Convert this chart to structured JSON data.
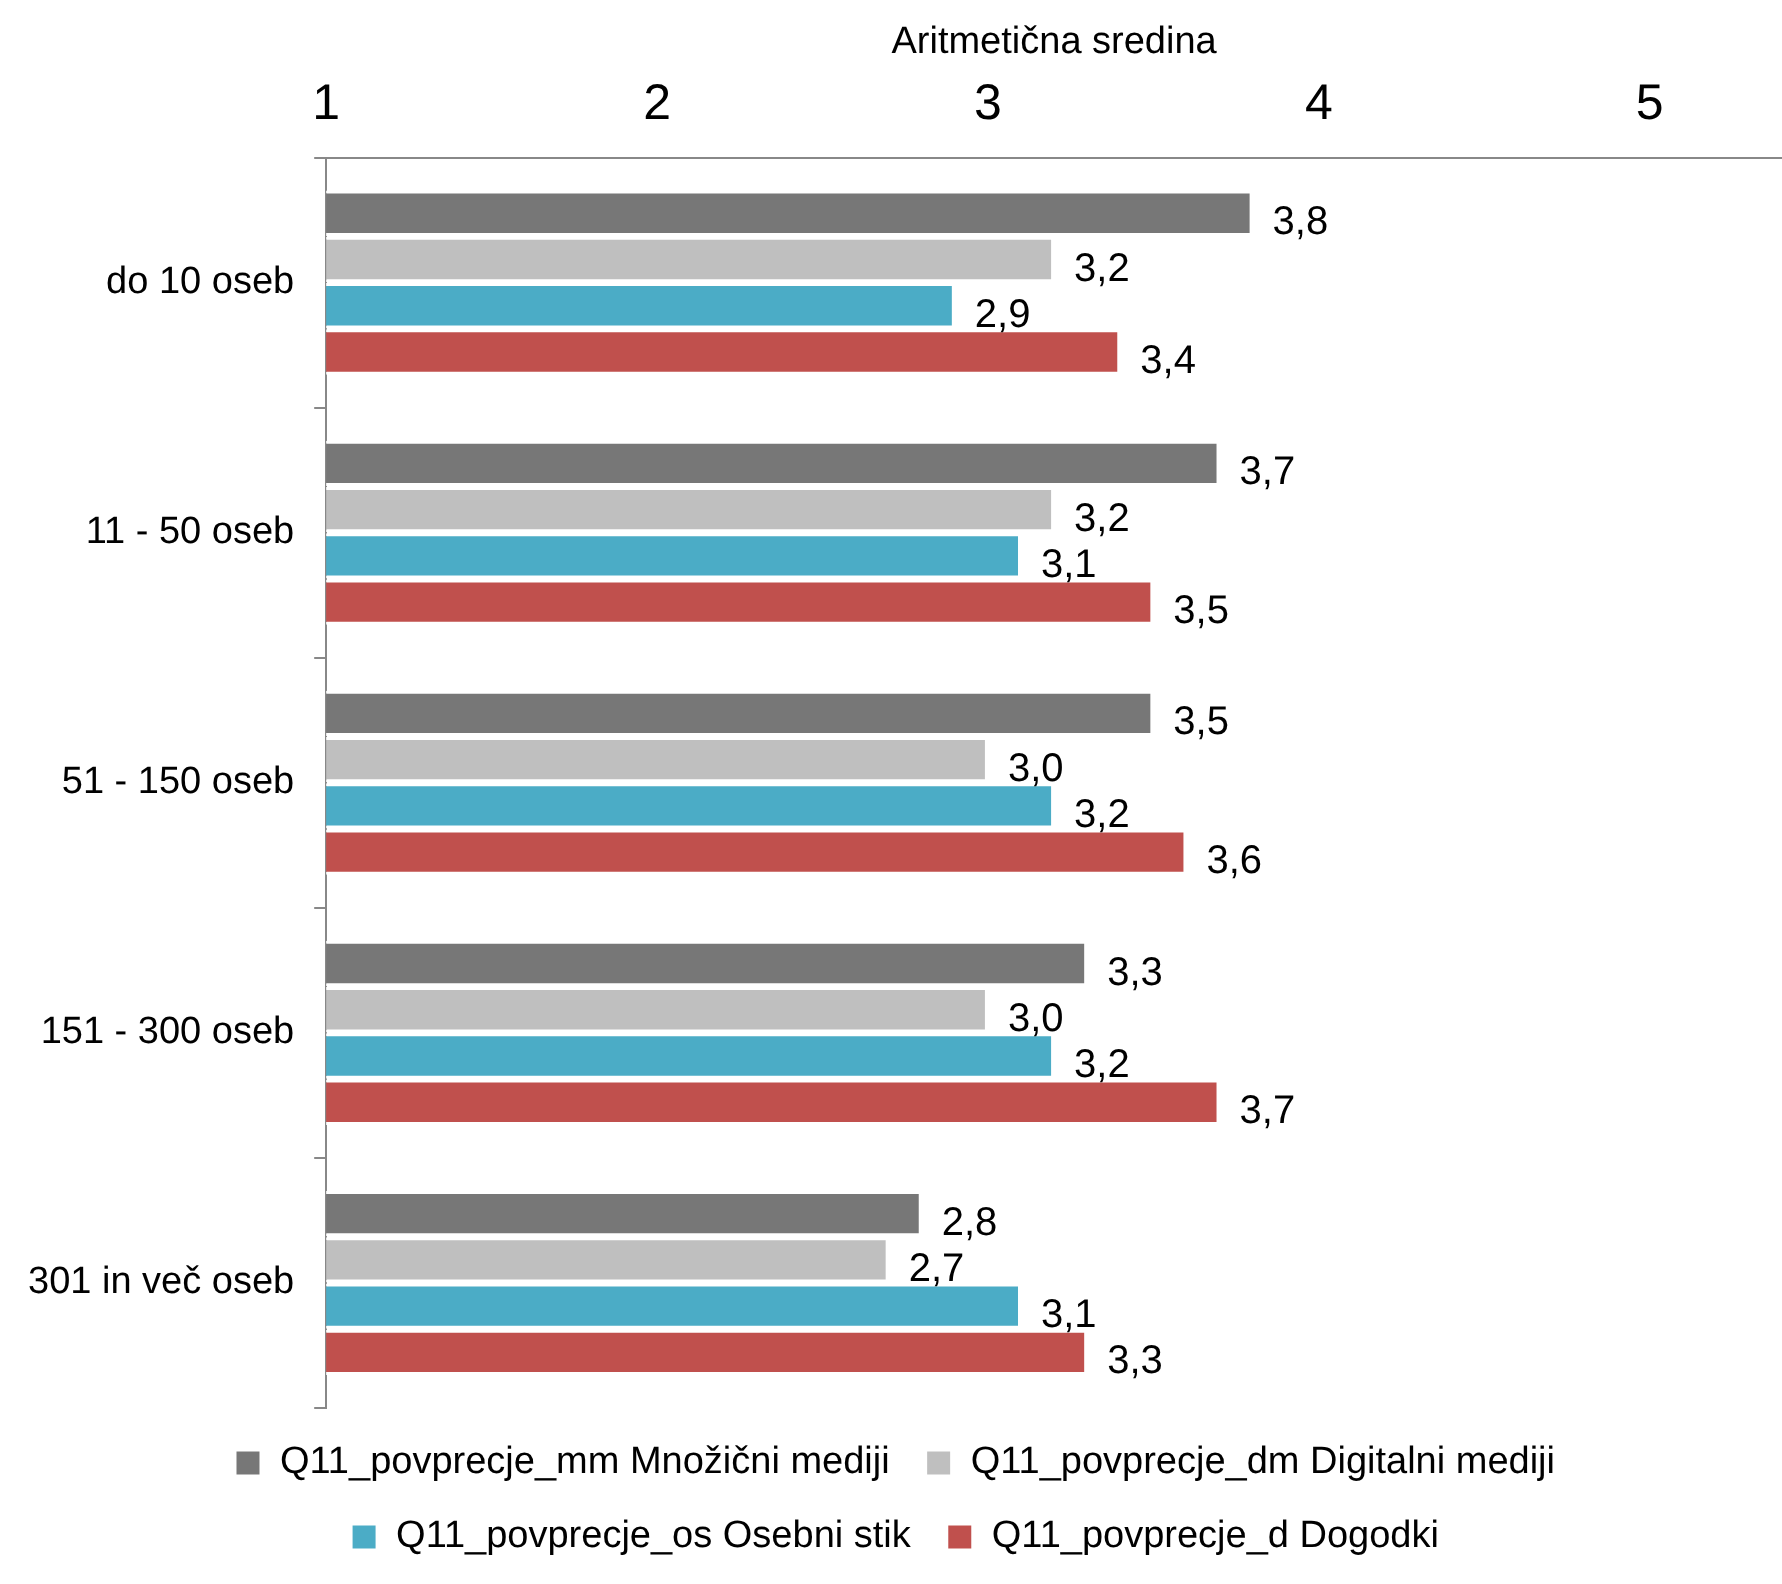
{
  "chart_data": {
    "type": "bar",
    "orientation": "horizontal",
    "xlabel": "Aritmetična sredina",
    "categories": [
      "do 10 oseb",
      "11 - 50 oseb",
      "51 - 150 oseb",
      "151 - 300 oseb",
      "301 in več oseb"
    ],
    "series": [
      {
        "name": "Q11_povprecje_mm Množični mediji",
        "color": "#777777",
        "values": [
          3.8,
          3.7,
          3.5,
          3.3,
          2.8
        ],
        "value_labels": [
          "3,8",
          "3,7",
          "3,5",
          "3,3",
          "2,8"
        ]
      },
      {
        "name": "Q11_povprecje_dm Digitalni mediji",
        "color": "#bfbfbf",
        "values": [
          3.2,
          3.2,
          3.0,
          3.0,
          2.7
        ],
        "value_labels": [
          "3,2",
          "3,2",
          "3,0",
          "3,0",
          "2,7"
        ]
      },
      {
        "name": "Q11_povprecje_os Osebni stik",
        "color": "#4bacc6",
        "values": [
          2.9,
          3.1,
          3.2,
          3.2,
          3.1
        ],
        "value_labels": [
          "2,9",
          "3,1",
          "3,2",
          "3,2",
          "3,1"
        ]
      },
      {
        "name": "Q11_povprecje_d Dogodki",
        "color": "#c0504d",
        "values": [
          3.4,
          3.5,
          3.6,
          3.7,
          3.3
        ],
        "value_labels": [
          "3,4",
          "3,5",
          "3,6",
          "3,7",
          "3,3"
        ]
      }
    ],
    "xlim": [
      1,
      5.4
    ],
    "xticks": [
      1,
      2,
      3,
      4,
      5
    ],
    "grid": false,
    "legend": "bottom"
  }
}
